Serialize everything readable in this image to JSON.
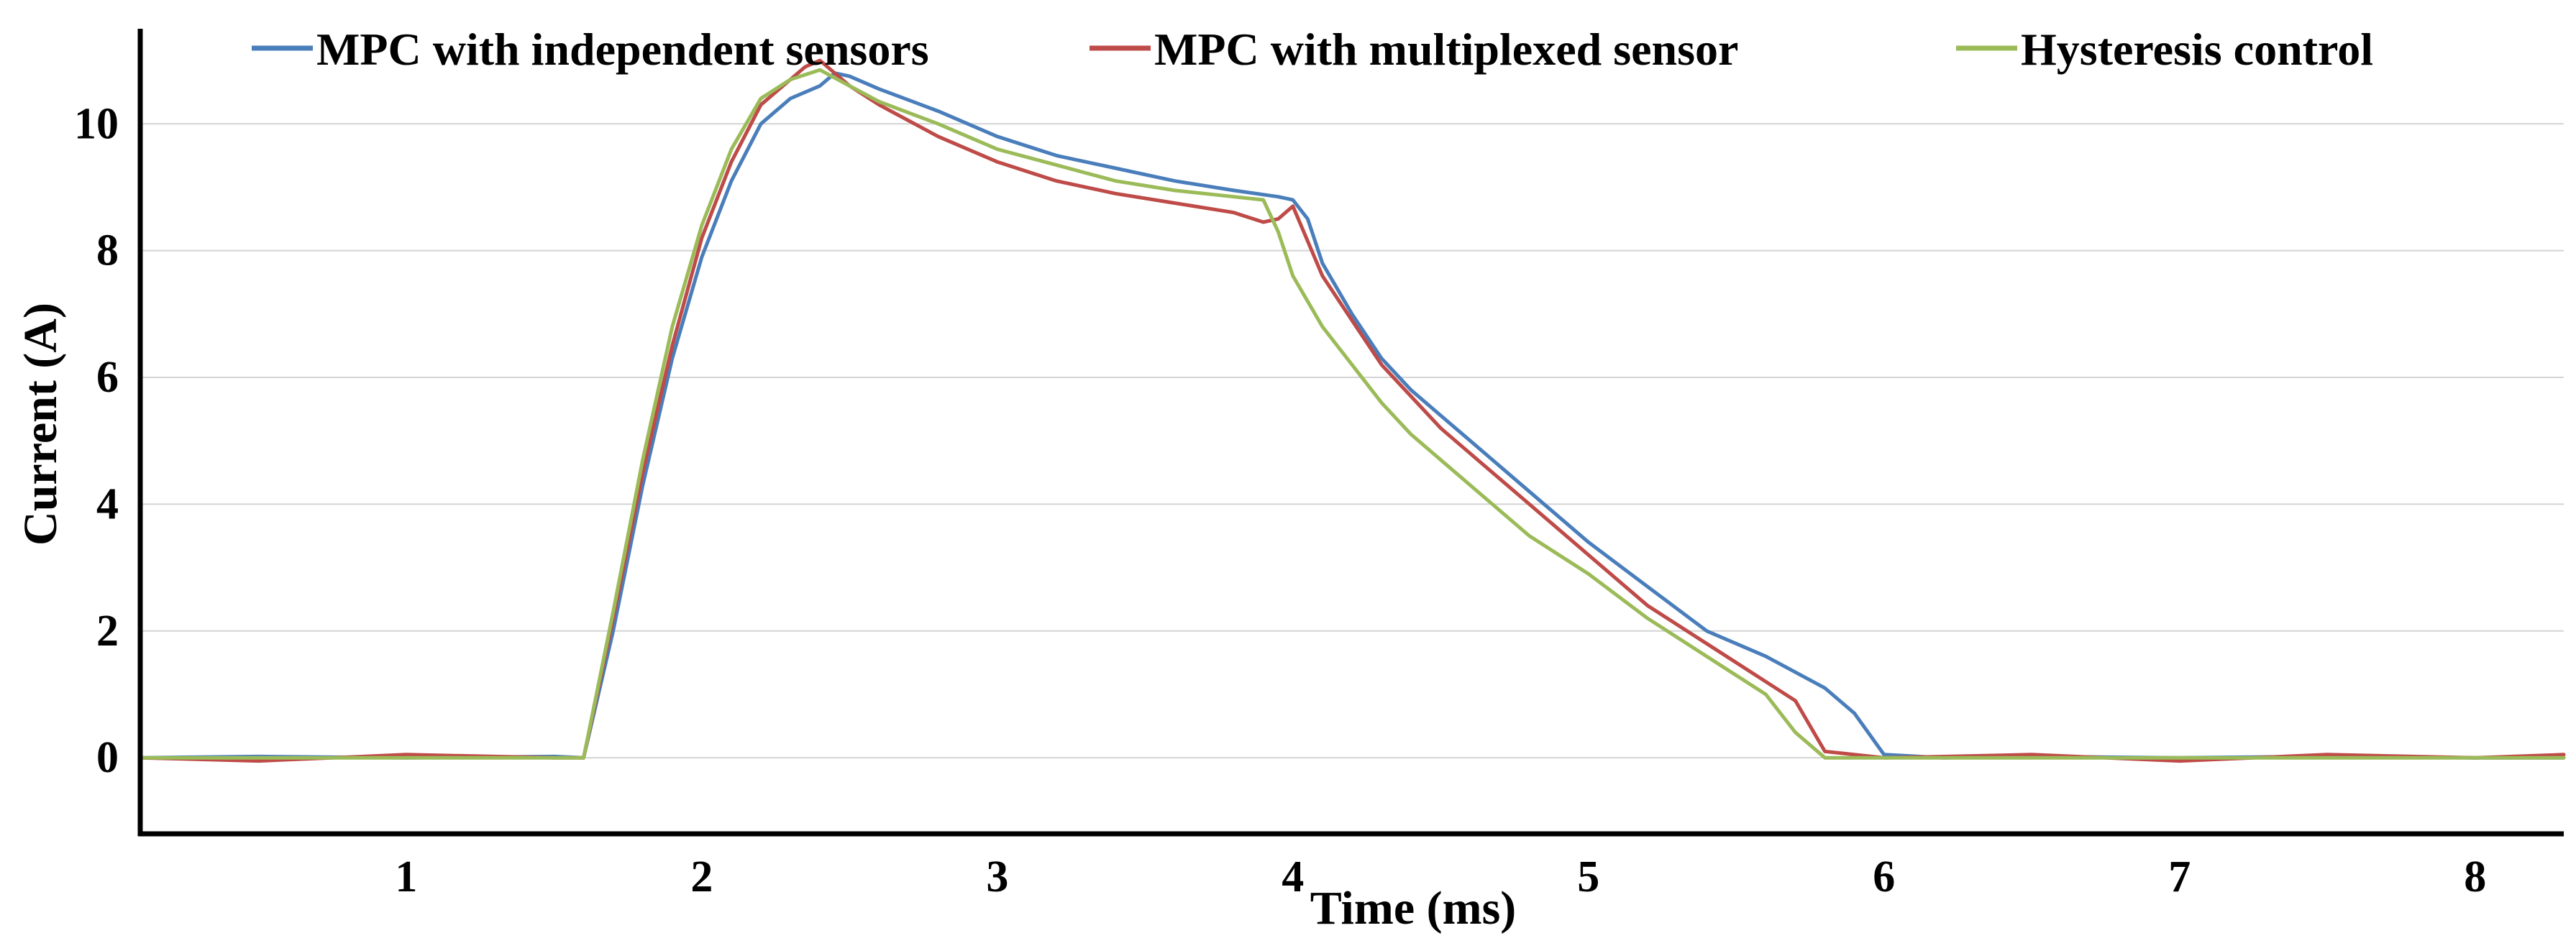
{
  "chart_data": {
    "type": "line",
    "title": "",
    "xlabel": "Time (ms)",
    "ylabel": "Current (A)",
    "xlim": [
      0.1,
      8.3
    ],
    "ylim": [
      -1.2,
      11.5
    ],
    "x_ticks": [
      1,
      2,
      3,
      4,
      5,
      6,
      7,
      8
    ],
    "y_ticks": [
      0,
      2,
      4,
      6,
      8,
      10
    ],
    "grid": true,
    "legend_position": "top",
    "series": [
      {
        "name": "MPC with independent sensors",
        "color": "#4a7ebb",
        "x": [
          0.1,
          0.5,
          1.0,
          1.5,
          1.6,
          1.7,
          1.8,
          1.9,
          2.0,
          2.1,
          2.2,
          2.3,
          2.4,
          2.45,
          2.5,
          2.6,
          2.8,
          3.0,
          3.2,
          3.4,
          3.6,
          3.8,
          3.95,
          4.0,
          4.05,
          4.1,
          4.2,
          4.3,
          4.4,
          4.5,
          4.6,
          4.8,
          5.0,
          5.2,
          5.4,
          5.6,
          5.8,
          5.9,
          6.0,
          6.2,
          6.5,
          7.0,
          7.5,
          8.0,
          8.3
        ],
        "y": [
          0.0,
          0.02,
          0.0,
          0.02,
          0.0,
          2.0,
          4.3,
          6.3,
          7.9,
          9.1,
          10.0,
          10.4,
          10.6,
          10.8,
          10.75,
          10.55,
          10.2,
          9.8,
          9.5,
          9.3,
          9.1,
          8.95,
          8.85,
          8.8,
          8.5,
          7.8,
          7.0,
          6.3,
          5.8,
          5.4,
          5.0,
          4.2,
          3.4,
          2.7,
          2.0,
          1.6,
          1.1,
          0.7,
          0.05,
          0.0,
          0.02,
          0.0,
          0.02,
          0.0,
          0.0
        ]
      },
      {
        "name": "MPC with multiplexed sensor",
        "color": "#be4b48",
        "x": [
          0.1,
          0.5,
          1.0,
          1.5,
          1.6,
          1.7,
          1.8,
          1.9,
          2.0,
          2.1,
          2.2,
          2.3,
          2.35,
          2.4,
          2.5,
          2.6,
          2.8,
          3.0,
          3.2,
          3.4,
          3.6,
          3.8,
          3.9,
          3.95,
          4.0,
          4.1,
          4.2,
          4.3,
          4.4,
          4.5,
          4.6,
          4.8,
          5.0,
          5.2,
          5.4,
          5.6,
          5.7,
          5.8,
          6.0,
          6.5,
          7.0,
          7.5,
          8.0,
          8.3
        ],
        "y": [
          0.0,
          -0.05,
          0.05,
          0.0,
          0.0,
          2.2,
          4.5,
          6.5,
          8.2,
          9.4,
          10.3,
          10.7,
          10.9,
          11.0,
          10.6,
          10.3,
          9.8,
          9.4,
          9.1,
          8.9,
          8.75,
          8.6,
          8.45,
          8.5,
          8.7,
          7.6,
          6.9,
          6.2,
          5.7,
          5.2,
          4.8,
          4.0,
          3.2,
          2.4,
          1.8,
          1.2,
          0.9,
          0.1,
          0.0,
          0.05,
          -0.05,
          0.05,
          0.0,
          0.05
        ]
      },
      {
        "name": "Hysteresis control",
        "color": "#9bbb59",
        "x": [
          0.1,
          0.5,
          1.0,
          1.5,
          1.6,
          1.7,
          1.8,
          1.9,
          2.0,
          2.1,
          2.2,
          2.3,
          2.4,
          2.5,
          2.6,
          2.8,
          3.0,
          3.2,
          3.4,
          3.6,
          3.8,
          3.9,
          3.95,
          4.0,
          4.1,
          4.2,
          4.3,
          4.4,
          4.5,
          4.6,
          4.8,
          5.0,
          5.2,
          5.4,
          5.6,
          5.7,
          5.8,
          6.0,
          6.5,
          7.0,
          7.5,
          8.0,
          8.3
        ],
        "y": [
          0.0,
          0.0,
          0.0,
          0.0,
          0.0,
          2.3,
          4.7,
          6.8,
          8.4,
          9.6,
          10.4,
          10.7,
          10.85,
          10.6,
          10.35,
          10.0,
          9.6,
          9.35,
          9.1,
          8.95,
          8.85,
          8.8,
          8.3,
          7.6,
          6.8,
          6.2,
          5.6,
          5.1,
          4.7,
          4.3,
          3.5,
          2.9,
          2.2,
          1.6,
          1.0,
          0.4,
          0.0,
          0.0,
          0.0,
          0.0,
          0.0,
          0.0,
          0.0
        ]
      }
    ]
  }
}
